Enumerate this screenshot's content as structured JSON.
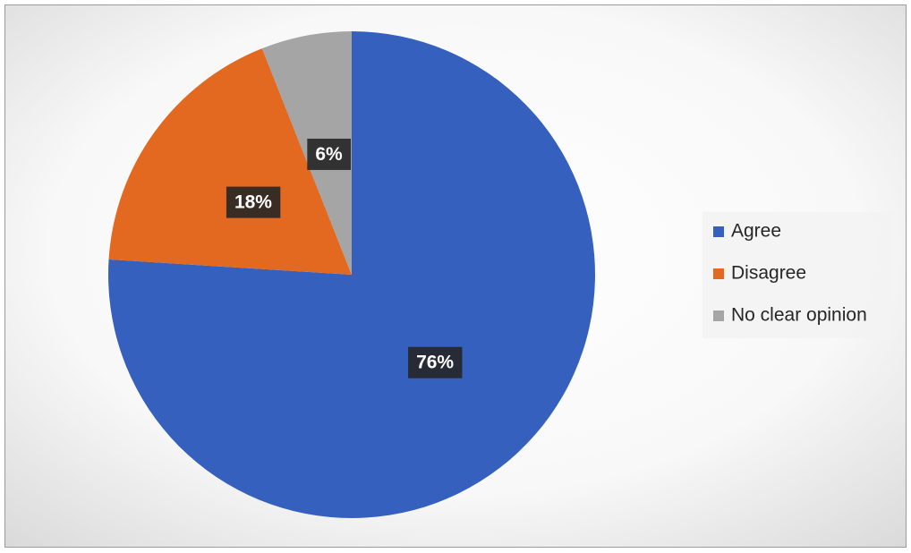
{
  "chart_data": {
    "type": "pie",
    "categories": [
      "Agree",
      "Disagree",
      "No clear opinion"
    ],
    "values": [
      76,
      18,
      6
    ],
    "value_labels": [
      "76%",
      "18%",
      "6%"
    ],
    "colors": [
      "#3560be",
      "#e2691f",
      "#a5a5a5"
    ],
    "legend": "right"
  }
}
